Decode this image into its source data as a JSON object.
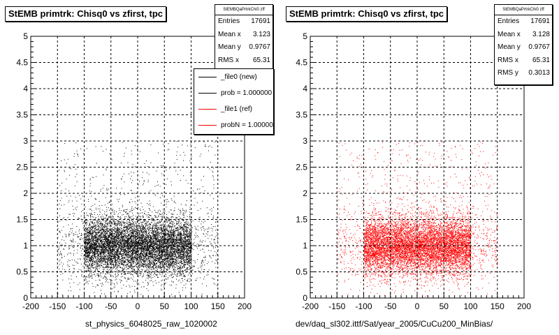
{
  "chart_data": [
    {
      "type": "scatter",
      "title": "StEMB primtrk: Chisq0 vs zfirst, tpc",
      "xlabel": "st_physics_6048025_raw_1020002",
      "ylabel": "",
      "xlim": [
        -200,
        200
      ],
      "ylim": [
        0,
        5
      ],
      "xticks": [
        "-200",
        "-150",
        "-100",
        "-50",
        "0",
        "50",
        "100",
        "150",
        "200"
      ],
      "yticks": [
        "0",
        "0.5",
        "1",
        "1.5",
        "2",
        "2.5",
        "3",
        "3.5",
        "4",
        "4.5",
        "5"
      ],
      "grid": true,
      "marker_color": "#000000",
      "density": {
        "x_core": [
          -100,
          100
        ],
        "x_spread": [
          -150,
          150
        ],
        "y_center": 1.0,
        "y_band": [
          0.5,
          1.5
        ]
      },
      "stats": {
        "header": "StEMBQaPrtrkChi0 zff",
        "rows": [
          {
            "label": "Entries",
            "value": "17691"
          },
          {
            "label": "Mean x",
            "value": "3.123"
          },
          {
            "label": "Mean y",
            "value": "0.9767"
          },
          {
            "label": "RMS x",
            "value": "65.31"
          }
        ]
      },
      "legend": {
        "placement": "top-right",
        "entries": [
          {
            "label": "_file0 (new)",
            "color": "#000000"
          },
          {
            "label": "prob = 1.000000",
            "color": "#000000"
          },
          {
            "label": "_file1 (ref)",
            "color": "#ff0000"
          },
          {
            "label": "probN = 1.000000",
            "color": "#ff0000"
          }
        ]
      }
    },
    {
      "type": "scatter",
      "title": "StEMB primtrk: Chisq0 vs zfirst, tpc",
      "xlabel": "dev/daq_sl302.ittf/Sat/year_2005/CuCu200_MinBias/",
      "ylabel": "",
      "xlim": [
        -200,
        200
      ],
      "ylim": [
        0,
        5
      ],
      "xticks": [
        "-200",
        "-150",
        "-100",
        "-50",
        "0",
        "50",
        "100",
        "150",
        "200"
      ],
      "yticks": [
        "0",
        "0.5",
        "1",
        "1.5",
        "2",
        "2.5",
        "3",
        "3.5",
        "4",
        "4.5",
        "5"
      ],
      "grid": true,
      "marker_color": "#ff0000",
      "density": {
        "x_core": [
          -100,
          100
        ],
        "x_spread": [
          -150,
          150
        ],
        "y_center": 1.0,
        "y_band": [
          0.5,
          1.5
        ]
      },
      "stats": {
        "header": "StEMBQaPrtrkChi0 zff",
        "rows": [
          {
            "label": "Entries",
            "value": "17691"
          },
          {
            "label": "Mean x",
            "value": "3.128"
          },
          {
            "label": "Mean y",
            "value": "0.9767"
          },
          {
            "label": "RMS x",
            "value": "65.31"
          },
          {
            "label": "RMS y",
            "value": "0.3013"
          }
        ]
      }
    }
  ]
}
